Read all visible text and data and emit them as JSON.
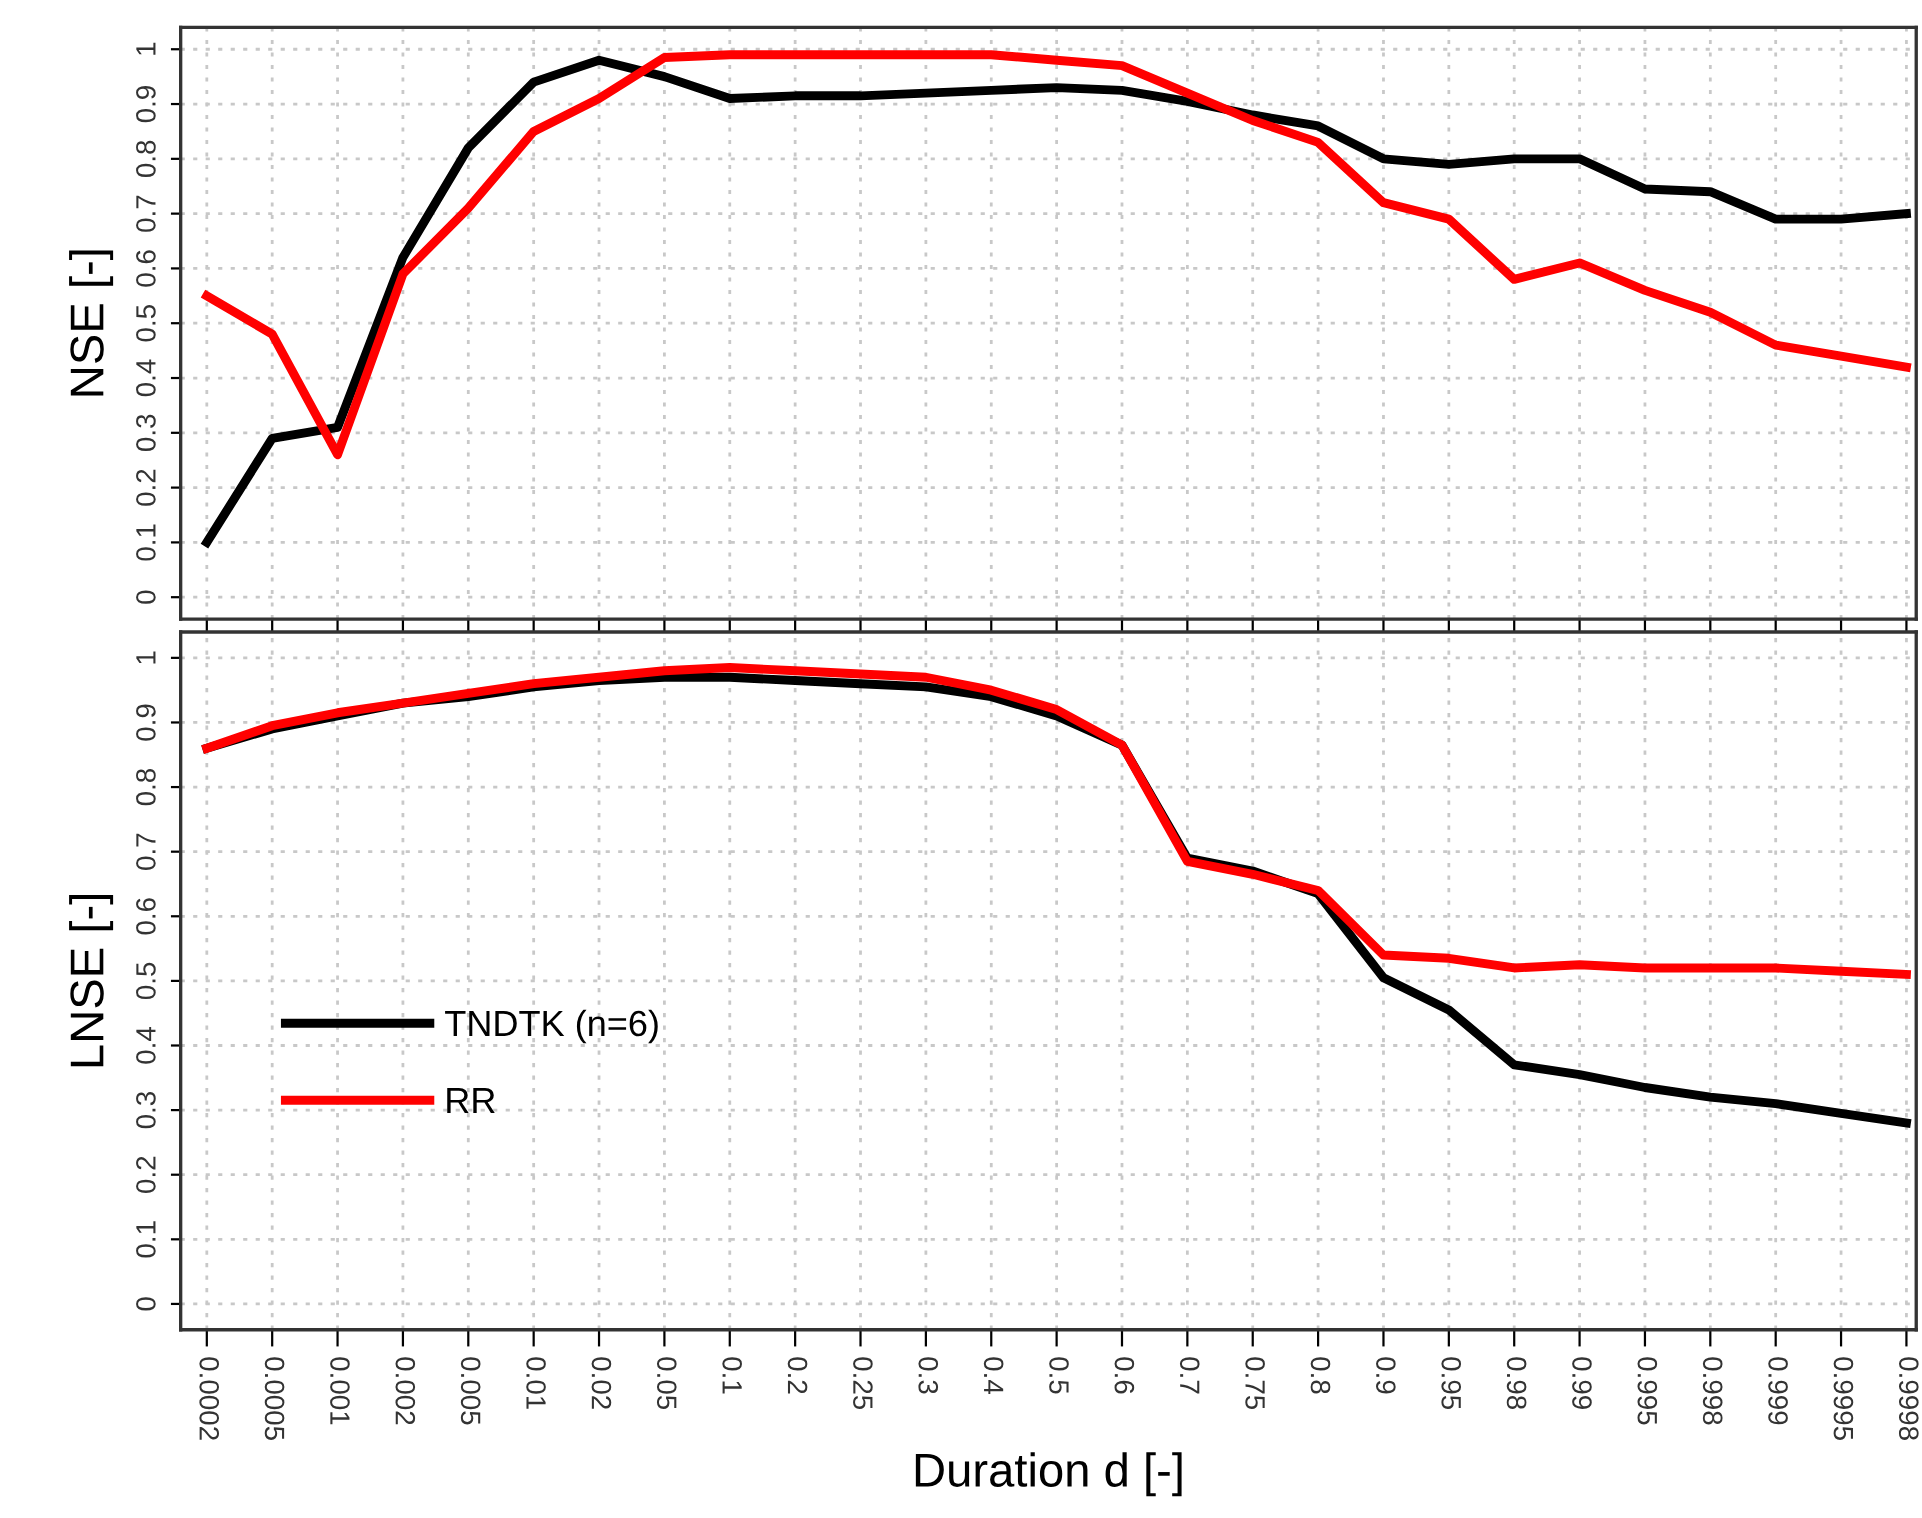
{
  "chart_data": [
    {
      "type": "line",
      "ylabel": "NSE [-]",
      "categories": [
        "0.0002",
        "0.0005",
        "0.001",
        "0.002",
        "0.005",
        "0.01",
        "0.02",
        "0.05",
        "0.1",
        "0.2",
        "0.25",
        "0.3",
        "0.4",
        "0.5",
        "0.6",
        "0.7",
        "0.75",
        "0.8",
        "0.9",
        "0.95",
        "0.98",
        "0.99",
        "0.995",
        "0.998",
        "0.999",
        "0.9995",
        "0.9998"
      ],
      "series": [
        {
          "color": "#000000",
          "values": [
            0.1,
            0.29,
            0.31,
            0.62,
            0.82,
            0.94,
            0.98,
            0.95,
            0.91,
            0.915,
            0.915,
            0.92,
            0.925,
            0.93,
            0.925,
            0.905,
            0.88,
            0.86,
            0.8,
            0.79,
            0.8,
            0.8,
            0.745,
            0.74,
            0.69,
            0.69,
            0.7
          ]
        },
        {
          "color": "#ff0000",
          "values": [
            0.55,
            0.48,
            0.26,
            0.59,
            0.71,
            0.85,
            0.91,
            0.985,
            0.99,
            0.99,
            0.99,
            0.99,
            0.99,
            0.98,
            0.97,
            0.92,
            0.87,
            0.83,
            0.72,
            0.69,
            0.58,
            0.61,
            0.56,
            0.52,
            0.46,
            0.44,
            0.42
          ]
        }
      ],
      "ylim": [
        -0.04,
        1.04
      ],
      "yticks": [
        0,
        0.1,
        0.2,
        0.3,
        0.4,
        0.5,
        0.6,
        0.7,
        0.8,
        0.9,
        1
      ],
      "grid": true,
      "legend": false,
      "tick_labels": "y",
      "line_style": "solid",
      "marker": "none"
    },
    {
      "type": "line",
      "ylabel": "LNSE [-]",
      "xlabel": "Duration d [-]",
      "categories": [
        "0.0002",
        "0.0005",
        "0.001",
        "0.002",
        "0.005",
        "0.01",
        "0.02",
        "0.05",
        "0.1",
        "0.2",
        "0.25",
        "0.3",
        "0.4",
        "0.5",
        "0.6",
        "0.7",
        "0.75",
        "0.8",
        "0.9",
        "0.95",
        "0.98",
        "0.99",
        "0.995",
        "0.998",
        "0.999",
        "0.9995",
        "0.9998"
      ],
      "series": [
        {
          "name": "TNDTK (n=6)",
          "color": "#000000",
          "values": [
            0.86,
            0.89,
            0.91,
            0.93,
            0.94,
            0.955,
            0.965,
            0.97,
            0.97,
            0.965,
            0.96,
            0.955,
            0.94,
            0.91,
            0.865,
            0.69,
            0.67,
            0.635,
            0.505,
            0.455,
            0.37,
            0.355,
            0.335,
            0.32,
            0.31,
            0.295,
            0.28
          ]
        },
        {
          "name": "RR",
          "color": "#ff0000",
          "values": [
            0.86,
            0.895,
            0.915,
            0.93,
            0.945,
            0.96,
            0.97,
            0.98,
            0.985,
            0.98,
            0.975,
            0.97,
            0.95,
            0.92,
            0.865,
            0.685,
            0.665,
            0.64,
            0.54,
            0.535,
            0.52,
            0.525,
            0.52,
            0.52,
            0.52,
            0.515,
            0.51
          ]
        }
      ],
      "ylim": [
        -0.04,
        1.04
      ],
      "yticks": [
        0,
        0.1,
        0.2,
        0.3,
        0.4,
        0.5,
        0.6,
        0.7,
        0.8,
        0.9,
        1
      ],
      "grid": true,
      "legend": "bottom left",
      "line_style": "solid",
      "marker": "none"
    }
  ]
}
